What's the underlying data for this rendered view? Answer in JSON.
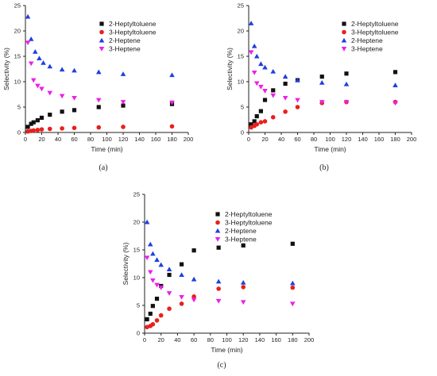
{
  "colors": {
    "2-Heptyltoluene": "#111111",
    "3-Heptyltoluene": "#e8201c",
    "2-Heptene": "#1f3fe0",
    "3-Heptene": "#ee1ee8"
  },
  "chart_data": [
    {
      "type": "scatter",
      "panel_label": "(a)",
      "xlabel": "Time (min)",
      "ylabel": "Selectivity (%)",
      "xlim": [
        0,
        200
      ],
      "ylim": [
        0,
        25
      ],
      "xticks": [
        0,
        20,
        40,
        60,
        80,
        100,
        120,
        140,
        160,
        180,
        200
      ],
      "yticks": [
        0,
        5,
        10,
        15,
        20,
        25
      ],
      "legend_position": "top-right",
      "series": [
        {
          "name": "2-Heptyltoluene",
          "marker": "square",
          "points": [
            [
              3,
              1.1
            ],
            [
              7,
              1.7
            ],
            [
              10,
              2.0
            ],
            [
              15,
              2.4
            ],
            [
              20,
              2.9
            ],
            [
              30,
              3.5
            ],
            [
              45,
              4.1
            ],
            [
              60,
              4.4
            ],
            [
              90,
              5.0
            ],
            [
              120,
              5.3
            ],
            [
              180,
              5.6
            ]
          ]
        },
        {
          "name": "3-Heptyltoluene",
          "marker": "circle",
          "points": [
            [
              3,
              0.2
            ],
            [
              7,
              0.3
            ],
            [
              10,
              0.4
            ],
            [
              15,
              0.5
            ],
            [
              20,
              0.6
            ],
            [
              30,
              0.7
            ],
            [
              45,
              0.8
            ],
            [
              60,
              0.9
            ],
            [
              90,
              1.0
            ],
            [
              120,
              1.1
            ],
            [
              180,
              1.2
            ]
          ]
        },
        {
          "name": "2-Heptene",
          "marker": "triangle-up",
          "points": [
            [
              3,
              22.8
            ],
            [
              7,
              18.4
            ],
            [
              12,
              15.9
            ],
            [
              17,
              14.6
            ],
            [
              22,
              13.7
            ],
            [
              30,
              13.0
            ],
            [
              45,
              12.4
            ],
            [
              60,
              12.2
            ],
            [
              90,
              11.9
            ],
            [
              120,
              11.5
            ],
            [
              180,
              11.3
            ]
          ]
        },
        {
          "name": "3-Heptene",
          "marker": "triangle-down",
          "points": [
            [
              3,
              17.7
            ],
            [
              7,
              13.6
            ],
            [
              10,
              10.3
            ],
            [
              15,
              9.2
            ],
            [
              20,
              8.6
            ],
            [
              30,
              7.8
            ],
            [
              45,
              7.2
            ],
            [
              60,
              6.8
            ],
            [
              90,
              6.4
            ],
            [
              120,
              6.0
            ],
            [
              180,
              5.9
            ]
          ]
        }
      ]
    },
    {
      "type": "scatter",
      "panel_label": "(b)",
      "xlabel": "Time (min)",
      "ylabel": "Selectivity (%)",
      "xlim": [
        0,
        200
      ],
      "ylim": [
        0,
        25
      ],
      "xticks": [
        0,
        20,
        40,
        60,
        80,
        100,
        120,
        140,
        160,
        180,
        200
      ],
      "yticks": [
        0,
        5,
        10,
        15,
        20,
        25
      ],
      "legend_position": "top-right",
      "series": [
        {
          "name": "2-Heptyltoluene",
          "marker": "square",
          "points": [
            [
              3,
              1.6
            ],
            [
              7,
              2.2
            ],
            [
              10,
              3.2
            ],
            [
              15,
              4.2
            ],
            [
              20,
              6.4
            ],
            [
              30,
              8.3
            ],
            [
              45,
              9.6
            ],
            [
              60,
              10.3
            ],
            [
              90,
              11.0
            ],
            [
              120,
              11.6
            ],
            [
              180,
              11.9
            ]
          ]
        },
        {
          "name": "3-Heptyltoluene",
          "marker": "circle",
          "points": [
            [
              3,
              1.0
            ],
            [
              7,
              1.3
            ],
            [
              10,
              1.6
            ],
            [
              15,
              2.0
            ],
            [
              20,
              2.2
            ],
            [
              30,
              3.0
            ],
            [
              45,
              4.1
            ],
            [
              60,
              5.0
            ],
            [
              90,
              5.8
            ],
            [
              120,
              6.0
            ],
            [
              180,
              6.0
            ]
          ]
        },
        {
          "name": "2-Heptene",
          "marker": "triangle-up",
          "points": [
            [
              3,
              21.5
            ],
            [
              7,
              17.0
            ],
            [
              10,
              15.0
            ],
            [
              15,
              13.5
            ],
            [
              20,
              12.8
            ],
            [
              30,
              12.0
            ],
            [
              45,
              11.0
            ],
            [
              60,
              10.3
            ],
            [
              90,
              9.8
            ],
            [
              120,
              9.5
            ],
            [
              180,
              9.3
            ]
          ]
        },
        {
          "name": "3-Heptene",
          "marker": "triangle-down",
          "points": [
            [
              3,
              15.8
            ],
            [
              7,
              11.8
            ],
            [
              10,
              9.7
            ],
            [
              15,
              9.0
            ],
            [
              20,
              8.2
            ],
            [
              30,
              7.3
            ],
            [
              45,
              6.8
            ],
            [
              60,
              6.4
            ],
            [
              90,
              6.0
            ],
            [
              120,
              6.0
            ],
            [
              180,
              5.8
            ]
          ]
        }
      ]
    },
    {
      "type": "scatter",
      "panel_label": "(c)",
      "xlabel": "Time (min)",
      "ylabel": "Selectivity (%)",
      "xlim": [
        0,
        200
      ],
      "ylim": [
        0,
        25
      ],
      "xticks": [
        0,
        20,
        40,
        60,
        80,
        100,
        120,
        140,
        160,
        180,
        200
      ],
      "yticks": [
        0,
        5,
        10,
        15,
        20,
        25
      ],
      "legend_position": "top-right",
      "series": [
        {
          "name": "2-Heptyltoluene",
          "marker": "square",
          "points": [
            [
              3,
              2.5
            ],
            [
              7,
              3.5
            ],
            [
              10,
              4.9
            ],
            [
              15,
              6.2
            ],
            [
              20,
              8.5
            ],
            [
              30,
              10.5
            ],
            [
              45,
              12.4
            ],
            [
              60,
              14.9
            ],
            [
              90,
              15.4
            ],
            [
              120,
              15.8
            ],
            [
              180,
              16.1
            ]
          ]
        },
        {
          "name": "3-Heptyltoluene",
          "marker": "circle",
          "points": [
            [
              3,
              1.1
            ],
            [
              7,
              1.3
            ],
            [
              10,
              1.6
            ],
            [
              15,
              2.3
            ],
            [
              20,
              3.2
            ],
            [
              30,
              4.4
            ],
            [
              45,
              5.3
            ],
            [
              60,
              6.6
            ],
            [
              90,
              8.0
            ],
            [
              120,
              8.3
            ],
            [
              180,
              8.2
            ]
          ]
        },
        {
          "name": "2-Heptene",
          "marker": "triangle-up",
          "points": [
            [
              3,
              20.0
            ],
            [
              7,
              16.0
            ],
            [
              10,
              14.3
            ],
            [
              15,
              13.2
            ],
            [
              20,
              12.3
            ],
            [
              30,
              11.5
            ],
            [
              45,
              10.5
            ],
            [
              60,
              9.7
            ],
            [
              90,
              9.3
            ],
            [
              120,
              9.1
            ],
            [
              180,
              9.0
            ]
          ]
        },
        {
          "name": "3-Heptene",
          "marker": "triangle-down",
          "points": [
            [
              3,
              13.6
            ],
            [
              7,
              11.0
            ],
            [
              10,
              9.5
            ],
            [
              15,
              8.7
            ],
            [
              20,
              8.2
            ],
            [
              30,
              7.2
            ],
            [
              45,
              6.5
            ],
            [
              60,
              6.0
            ],
            [
              90,
              5.8
            ],
            [
              120,
              5.6
            ],
            [
              180,
              5.3
            ]
          ]
        }
      ]
    }
  ]
}
